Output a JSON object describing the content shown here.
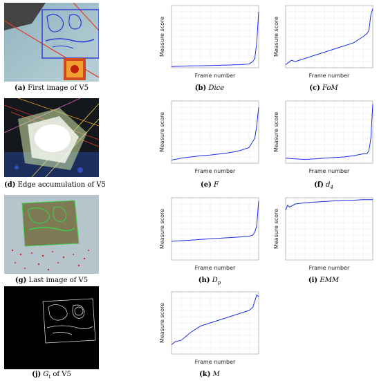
{
  "figure": {
    "images": [
      {
        "letter": "(a)",
        "text": "First image of V5"
      },
      {
        "letter": "(d)",
        "text": "Edge accumulation of V5"
      },
      {
        "letter": "(g)",
        "text": "Last image of V5"
      },
      {
        "letter": "(j)",
        "text": " of V5",
        "math": "G",
        "sub": "t"
      }
    ],
    "plots": [
      {
        "letter": "(b)",
        "math": "Dice",
        "sub": ""
      },
      {
        "letter": "(c)",
        "math": "FoM",
        "sub": ""
      },
      {
        "letter": "(e)",
        "math": "F",
        "sub": ""
      },
      {
        "letter": "(f)",
        "math": "d",
        "sub": "4"
      },
      {
        "letter": "(h)",
        "math": "D",
        "sub": "p"
      },
      {
        "letter": "(i)",
        "math": "EMM",
        "sub": ""
      },
      {
        "letter": "(k)",
        "math": "M",
        "sub": ""
      }
    ],
    "xlabel": "Frame number",
    "ylabel": "Measure score",
    "line_color": "#1a2ee6"
  },
  "chart_data": [
    {
      "type": "line",
      "id": "b",
      "x": [
        0,
        250,
        500,
        750,
        1000,
        1250,
        1500,
        1750,
        2000,
        2100,
        2150,
        2200,
        2250
      ],
      "values": [
        0.02,
        0.025,
        0.03,
        0.032,
        0.035,
        0.04,
        0.045,
        0.05,
        0.06,
        0.1,
        0.15,
        0.4,
        0.9
      ],
      "xlabel": "Frame number",
      "ylabel": "Measure score"
    },
    {
      "type": "line",
      "id": "c",
      "x": [
        0,
        150,
        250,
        500,
        750,
        1000,
        1250,
        1500,
        1750,
        2000,
        2100,
        2150,
        2200,
        2250
      ],
      "values": [
        0.05,
        0.12,
        0.1,
        0.15,
        0.2,
        0.25,
        0.3,
        0.35,
        0.4,
        0.5,
        0.55,
        0.6,
        0.85,
        0.95
      ],
      "xlabel": "Frame number",
      "ylabel": "Measure score"
    },
    {
      "type": "line",
      "id": "e",
      "x": [
        0,
        250,
        500,
        750,
        1000,
        1250,
        1500,
        1750,
        2000,
        2100,
        2150,
        2200,
        2250
      ],
      "values": [
        0.05,
        0.08,
        0.1,
        0.12,
        0.13,
        0.15,
        0.17,
        0.2,
        0.25,
        0.35,
        0.4,
        0.6,
        0.9
      ],
      "xlabel": "Frame number",
      "ylabel": "Measure score"
    },
    {
      "type": "line",
      "id": "f",
      "x": [
        0,
        250,
        500,
        750,
        1000,
        1250,
        1500,
        1750,
        2000,
        2100,
        2150,
        2200,
        2250
      ],
      "values": [
        0.08,
        0.07,
        0.06,
        0.07,
        0.08,
        0.09,
        0.1,
        0.12,
        0.15,
        0.15,
        0.2,
        0.4,
        0.95
      ],
      "xlabel": "Frame number",
      "ylabel": "Measure score"
    },
    {
      "type": "line",
      "id": "h",
      "x": [
        0,
        250,
        500,
        750,
        1000,
        1250,
        1500,
        1750,
        2000,
        2100,
        2150,
        2200,
        2250
      ],
      "values": [
        0.3,
        0.31,
        0.32,
        0.33,
        0.34,
        0.35,
        0.36,
        0.37,
        0.38,
        0.4,
        0.45,
        0.55,
        0.95
      ],
      "xlabel": "Frame number",
      "ylabel": "Measure score"
    },
    {
      "type": "line",
      "id": "i",
      "x": [
        0,
        50,
        100,
        250,
        500,
        750,
        1000,
        1250,
        1500,
        1750,
        2000,
        2250
      ],
      "values": [
        0.8,
        0.88,
        0.85,
        0.9,
        0.92,
        0.93,
        0.94,
        0.95,
        0.96,
        0.96,
        0.97,
        0.97
      ],
      "xlabel": "Frame number",
      "ylabel": "Measure score"
    },
    {
      "type": "line",
      "id": "k",
      "x": [
        0,
        100,
        250,
        500,
        750,
        1000,
        1250,
        1500,
        1750,
        2000,
        2100,
        2150,
        2200,
        2250
      ],
      "values": [
        0.15,
        0.2,
        0.22,
        0.35,
        0.45,
        0.5,
        0.55,
        0.6,
        0.65,
        0.7,
        0.75,
        0.85,
        0.95,
        0.92
      ],
      "xlabel": "Frame number",
      "ylabel": "Measure score"
    }
  ]
}
